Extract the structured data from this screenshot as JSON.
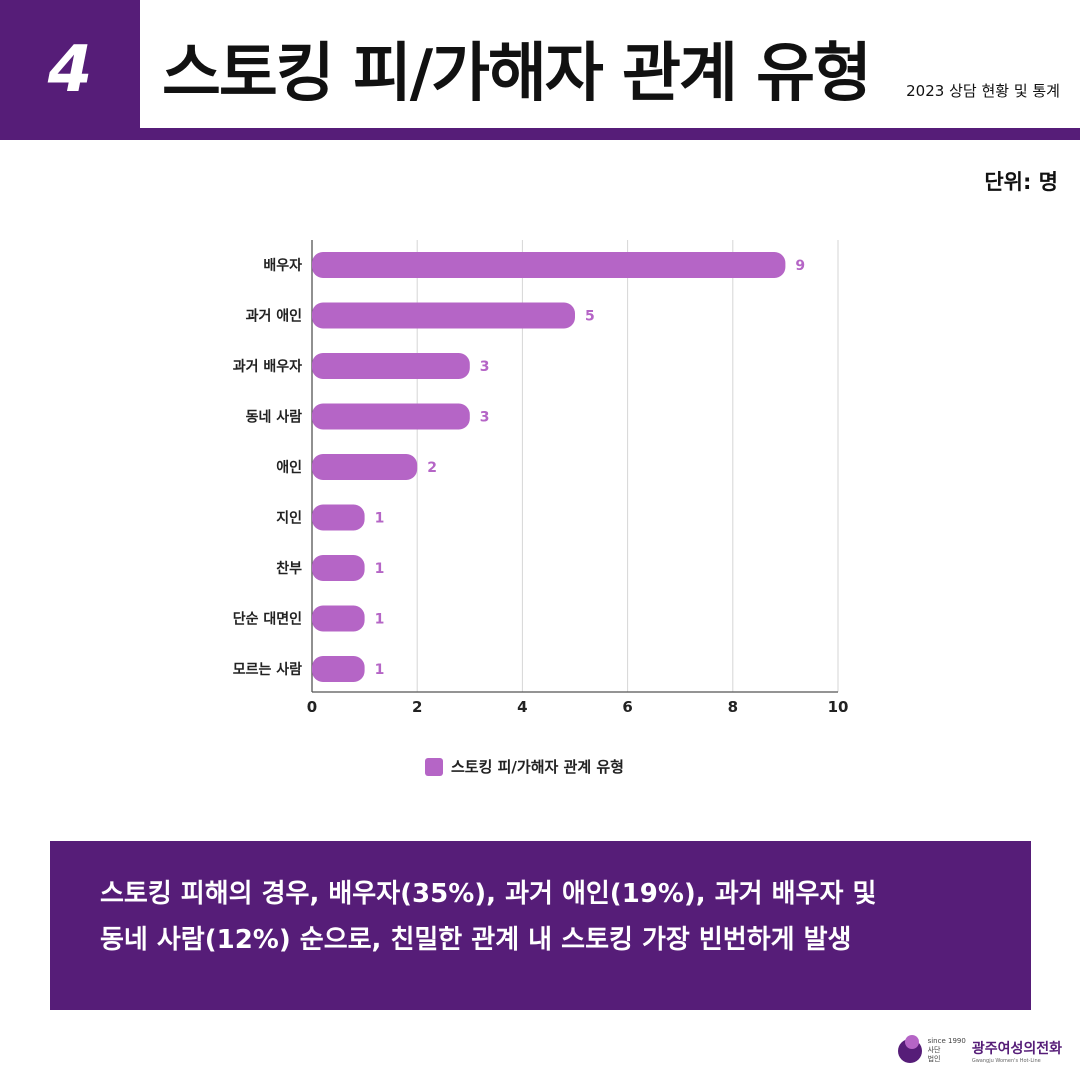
{
  "header": {
    "number": "4",
    "title": "스토킹 피/가해자 관계 유형",
    "subtitle": "2023 상담 현황 및 통계",
    "unit": "단위: 명"
  },
  "colors": {
    "brand": "#561d78",
    "bar": "#b565c6"
  },
  "chart_data": {
    "type": "bar",
    "orientation": "horizontal",
    "categories": [
      "배우자",
      "과거 애인",
      "과거 배우자",
      "동네 사람",
      "애인",
      "지인",
      "찬부",
      "단순 대면인",
      "모르는 사람"
    ],
    "series": [
      {
        "name": "스토킹 피/가해자 관계 유형",
        "values": [
          9,
          5,
          3,
          3,
          2,
          1,
          1,
          1,
          1
        ]
      }
    ],
    "xlim": [
      0,
      10
    ],
    "xticks": [
      "0",
      "2",
      "4",
      "6",
      "8",
      "10"
    ],
    "grid": true,
    "legend": "bottom"
  },
  "summary": {
    "line1": "스토킹 피해의 경우, 배우자(35%), 과거 애인(19%), 과거 배우자 및",
    "line2": "동네 사람(12%) 순으로, 친밀한 관계 내 스토킹 가장 빈번하게 발생"
  },
  "logo": {
    "since": "since 1990",
    "corp1": "사단",
    "corp2": "법인",
    "name": "광주여성의전화",
    "eng": "Gwangju Women's Hot-Line"
  }
}
